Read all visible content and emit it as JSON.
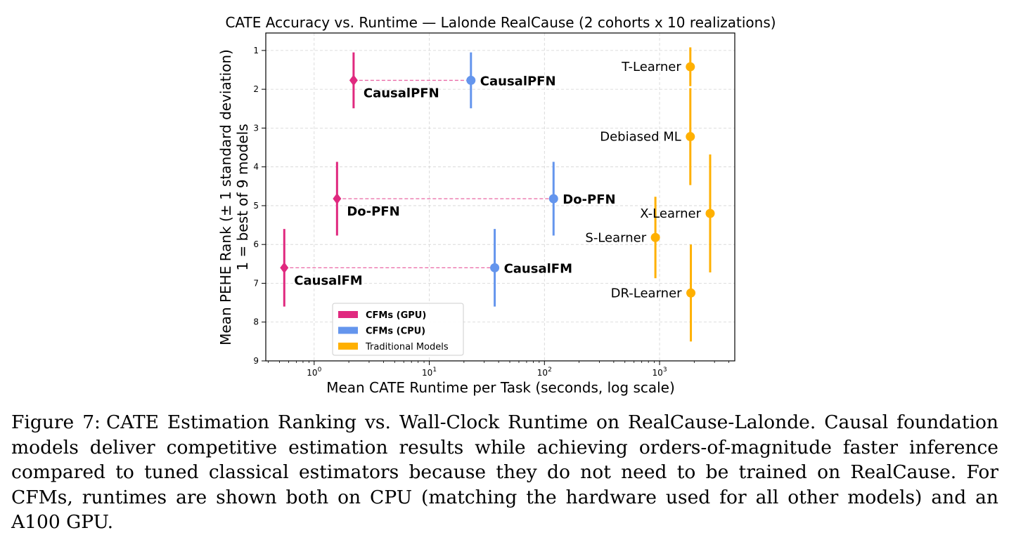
{
  "chart_data": {
    "type": "scatter",
    "title": "CATE Accuracy vs. Runtime — Lalonde RealCause (2 cohorts x 10 realizations)",
    "xlabel": "Mean CATE Runtime per Task (seconds, log scale)",
    "ylabel_line1": "Mean PEHE Rank (± 1 standard deviation)",
    "ylabel_line2": "1 = best of 9 models",
    "x_scale": "log",
    "xlim": [
      0.38,
      4500
    ],
    "ylim": [
      9,
      0.55
    ],
    "y_inverted": true,
    "x_ticks": [
      {
        "value": 1,
        "base": "10",
        "exp": "0"
      },
      {
        "value": 10,
        "base": "10",
        "exp": "1"
      },
      {
        "value": 100,
        "base": "10",
        "exp": "2"
      },
      {
        "value": 1000,
        "base": "10",
        "exp": "3"
      }
    ],
    "y_ticks": [
      "1",
      "2",
      "3",
      "4",
      "5",
      "6",
      "7",
      "8",
      "9"
    ],
    "grid": true,
    "legend_position": "lower-left",
    "legend": [
      {
        "label": "CFMs (GPU)",
        "color": "#e0297f",
        "bold": true
      },
      {
        "label": "CFMs (CPU)",
        "color": "#6495ed",
        "bold": true
      },
      {
        "label": "Traditional Models",
        "color": "#ffb000",
        "bold": false
      }
    ],
    "series": [
      {
        "name": "CFMs (GPU)",
        "color": "#e0297f",
        "marker": "diamond",
        "points": [
          {
            "label": "CausalPFN",
            "x": 2.2,
            "y": 1.77,
            "err": 0.72
          },
          {
            "label": "Do-PFN",
            "x": 1.58,
            "y": 4.82,
            "err": 0.95
          },
          {
            "label": "CausalFM",
            "x": 0.55,
            "y": 6.6,
            "err": 1.0
          }
        ]
      },
      {
        "name": "CFMs (CPU)",
        "color": "#6495ed",
        "marker": "circle",
        "points": [
          {
            "label": "CausalPFN",
            "x": 23,
            "y": 1.77,
            "err": 0.72
          },
          {
            "label": "Do-PFN",
            "x": 120,
            "y": 4.82,
            "err": 0.95
          },
          {
            "label": "CausalFM",
            "x": 37,
            "y": 6.6,
            "err": 1.0
          }
        ]
      },
      {
        "name": "Traditional Models",
        "color": "#ffb000",
        "marker": "circle",
        "points": [
          {
            "label": "T-Learner",
            "x": 1850,
            "y": 1.42,
            "err": 0.5
          },
          {
            "label": "Debiased ML",
            "x": 1850,
            "y": 3.22,
            "err": 1.25
          },
          {
            "label": "X-Learner",
            "x": 2750,
            "y": 5.2,
            "err": 1.52
          },
          {
            "label": "S-Learner",
            "x": 920,
            "y": 5.82,
            "err": 1.05
          },
          {
            "label": "DR-Learner",
            "x": 1870,
            "y": 7.25,
            "err": 1.25
          }
        ]
      }
    ],
    "connectors": [
      {
        "model": "CausalPFN",
        "x_from": 2.2,
        "x_to": 23,
        "y": 1.77
      },
      {
        "model": "Do-PFN",
        "x_from": 1.58,
        "x_to": 120,
        "y": 4.82
      },
      {
        "model": "CausalFM",
        "x_from": 0.55,
        "x_to": 37,
        "y": 6.6
      }
    ]
  },
  "caption": {
    "label": "Figure 7:",
    "text": "CATE Estimation Ranking vs.  Wall-Clock Runtime on RealCause-Lalonde.  Causal foundation models deliver competitive estimation results while achieving orders-of-magnitude faster inference compared to tuned classical estimators because they do not need to be trained on RealCause. For CFMs, runtimes are shown both on CPU (matching the hardware used for all other models) and an A100 GPU."
  }
}
